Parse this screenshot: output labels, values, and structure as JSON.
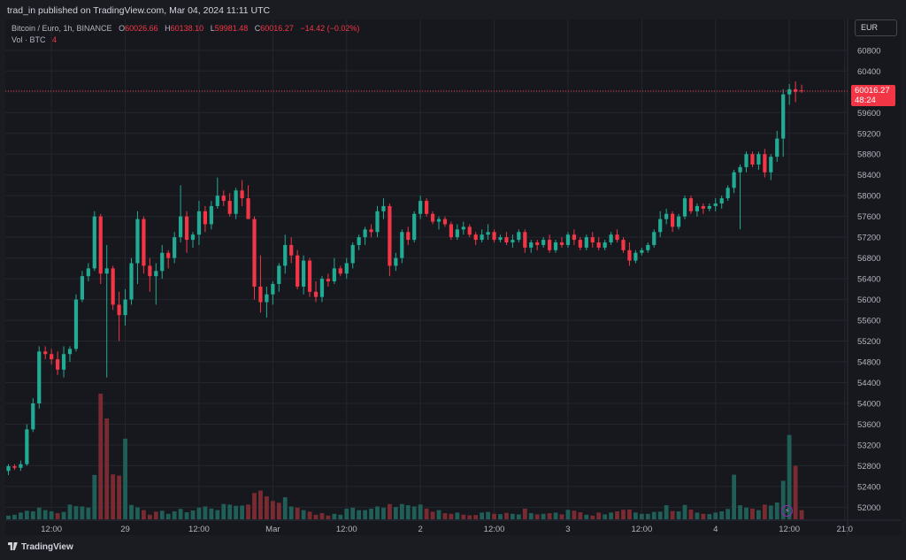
{
  "header": {
    "publisher": "trad_in published on TradingView.com, Mar 04, 2024 11:11 UTC"
  },
  "legend": {
    "symbol": "Bitcoin / Euro, 1h, BINANCE",
    "o_label": "O",
    "o_value": "60026.66",
    "h_label": "H",
    "h_value": "60138.10",
    "l_label": "L",
    "l_value": "59981.48",
    "c_label": "C",
    "c_value": "60016.27",
    "change": "−14.42 (−0.02%)",
    "vol_label": "Vol · BTC",
    "vol_value": "4"
  },
  "currency_button": {
    "label": "EUR"
  },
  "price_tag": {
    "price": "60016.27",
    "countdown": "48:24"
  },
  "footer": {
    "brand": "TradingView"
  },
  "icons": {
    "lightning": "lightning-icon"
  },
  "colors": {
    "up": "#22ab94",
    "down": "#f23645",
    "bg": "#17181e",
    "grid": "#24262e"
  },
  "chart_data": {
    "type": "candlestick",
    "title": "Bitcoin / Euro, 1h, BINANCE",
    "interval": "1h",
    "ylim": [
      51700,
      61000
    ],
    "y_ticks": [
      52000,
      52400,
      52800,
      53200,
      53600,
      54000,
      54400,
      54800,
      55200,
      55600,
      56000,
      56400,
      56800,
      57200,
      57600,
      58000,
      58400,
      58800,
      59200,
      59600,
      60000,
      60400,
      60800
    ],
    "x_ticks": [
      {
        "bar": 7,
        "label": "12:00"
      },
      {
        "bar": 19,
        "label": "29"
      },
      {
        "bar": 31,
        "label": "12:00"
      },
      {
        "bar": 43,
        "label": "Mar"
      },
      {
        "bar": 55,
        "label": "12:00"
      },
      {
        "bar": 67,
        "label": "2"
      },
      {
        "bar": 79,
        "label": "12:00"
      },
      {
        "bar": 91,
        "label": "3"
      },
      {
        "bar": 103,
        "label": "12:00"
      },
      {
        "bar": 115,
        "label": "4"
      },
      {
        "bar": 127,
        "label": "12:00"
      },
      {
        "bar": 136,
        "label": "21:0"
      }
    ],
    "last_price": 60016.27,
    "ohlc": [
      [
        52700,
        52830,
        52620,
        52790
      ],
      [
        52790,
        52830,
        52720,
        52760
      ],
      [
        52760,
        52900,
        52700,
        52830
      ],
      [
        52830,
        53600,
        52800,
        53500
      ],
      [
        53500,
        54100,
        53450,
        54000
      ],
      [
        54000,
        55100,
        53900,
        55000
      ],
      [
        55000,
        55100,
        54850,
        54950
      ],
      [
        54950,
        55050,
        54750,
        54850
      ],
      [
        54850,
        55000,
        54550,
        54650
      ],
      [
        54650,
        55100,
        54500,
        54950
      ],
      [
        54950,
        55100,
        54800,
        55050
      ],
      [
        55050,
        56100,
        55000,
        56000
      ],
      [
        56000,
        56550,
        55950,
        56450
      ],
      [
        56450,
        56700,
        56350,
        56600
      ],
      [
        56600,
        57700,
        56550,
        57600
      ],
      [
        57600,
        57650,
        56300,
        56500
      ],
      [
        56500,
        57050,
        54500,
        56600
      ],
      [
        56600,
        56650,
        55800,
        55900
      ],
      [
        55900,
        56150,
        55200,
        55700
      ],
      [
        55700,
        56200,
        55500,
        56000
      ],
      [
        56000,
        56800,
        55900,
        56700
      ],
      [
        56700,
        57700,
        56300,
        57550
      ],
      [
        57550,
        57600,
        56500,
        56650
      ],
      [
        56650,
        56800,
        56150,
        56450
      ],
      [
        56450,
        56700,
        55900,
        56550
      ],
      [
        56550,
        57050,
        56400,
        56900
      ],
      [
        56900,
        56950,
        56600,
        56800
      ],
      [
        56800,
        57300,
        56700,
        57200
      ],
      [
        57200,
        58200,
        57100,
        57600
      ],
      [
        57600,
        57700,
        56900,
        57150
      ],
      [
        57150,
        57300,
        57000,
        57250
      ],
      [
        57250,
        57900,
        57050,
        57700
      ],
      [
        57700,
        57800,
        57300,
        57450
      ],
      [
        57450,
        57900,
        57350,
        57800
      ],
      [
        57800,
        58350,
        57750,
        58000
      ],
      [
        58000,
        58100,
        57800,
        57900
      ],
      [
        57900,
        58050,
        57600,
        57650
      ],
      [
        57650,
        58150,
        57550,
        58100
      ],
      [
        58100,
        58300,
        57800,
        57950
      ],
      [
        57950,
        58200,
        57600,
        57550
      ],
      [
        57550,
        57600,
        56000,
        56250
      ],
      [
        56250,
        56850,
        55750,
        55950
      ],
      [
        55950,
        56250,
        55650,
        56100
      ],
      [
        56100,
        56350,
        55900,
        56300
      ],
      [
        56300,
        56700,
        56150,
        56650
      ],
      [
        56650,
        57250,
        56500,
        57050
      ],
      [
        57050,
        57200,
        56700,
        56850
      ],
      [
        56850,
        56950,
        56200,
        56250
      ],
      [
        56250,
        56850,
        56100,
        56750
      ],
      [
        56750,
        56800,
        56050,
        56150
      ],
      [
        56150,
        56350,
        55950,
        56050
      ],
      [
        56050,
        56450,
        55950,
        56400
      ],
      [
        56400,
        56500,
        56250,
        56350
      ],
      [
        56350,
        56800,
        56300,
        56600
      ],
      [
        56600,
        56650,
        56450,
        56500
      ],
      [
        56500,
        56800,
        56400,
        56700
      ],
      [
        56700,
        57100,
        56600,
        57050
      ],
      [
        57050,
        57250,
        56950,
        57200
      ],
      [
        57200,
        57400,
        57050,
        57350
      ],
      [
        57350,
        57450,
        57200,
        57300
      ],
      [
        57300,
        57800,
        57200,
        57700
      ],
      [
        57700,
        57950,
        57550,
        57800
      ],
      [
        57800,
        57850,
        56450,
        56650
      ],
      [
        56650,
        56900,
        56550,
        56800
      ],
      [
        56800,
        57350,
        56700,
        57300
      ],
      [
        57300,
        57400,
        57050,
        57150
      ],
      [
        57150,
        57700,
        57100,
        57650
      ],
      [
        57650,
        58000,
        57550,
        57900
      ],
      [
        57900,
        57950,
        57600,
        57650
      ],
      [
        57650,
        57700,
        57450,
        57500
      ],
      [
        57500,
        57600,
        57350,
        57550
      ],
      [
        57550,
        57600,
        57400,
        57450
      ],
      [
        57450,
        57500,
        57150,
        57200
      ],
      [
        57200,
        57450,
        57150,
        57350
      ],
      [
        57350,
        57500,
        57250,
        57400
      ],
      [
        57400,
        57450,
        57200,
        57250
      ],
      [
        57250,
        57300,
        57050,
        57150
      ],
      [
        57150,
        57350,
        57100,
        57250
      ],
      [
        57250,
        57450,
        57150,
        57300
      ],
      [
        57300,
        57350,
        57100,
        57150
      ],
      [
        57150,
        57250,
        57100,
        57200
      ],
      [
        57200,
        57300,
        57050,
        57100
      ],
      [
        57100,
        57250,
        57000,
        57150
      ],
      [
        57150,
        57350,
        57100,
        57300
      ],
      [
        57300,
        57350,
        56900,
        57000
      ],
      [
        57000,
        57150,
        56900,
        57100
      ],
      [
        57100,
        57150,
        56950,
        57050
      ],
      [
        57050,
        57200,
        57000,
        57150
      ],
      [
        57150,
        57250,
        56900,
        56950
      ],
      [
        56950,
        57150,
        56900,
        57100
      ],
      [
        57100,
        57200,
        57000,
        57050
      ],
      [
        57050,
        57300,
        57000,
        57250
      ],
      [
        57250,
        57350,
        57050,
        57150
      ],
      [
        57150,
        57200,
        56950,
        57000
      ],
      [
        57000,
        57250,
        56950,
        57200
      ],
      [
        57200,
        57300,
        57000,
        57100
      ],
      [
        57100,
        57200,
        56950,
        57000
      ],
      [
        57000,
        57150,
        56950,
        57100
      ],
      [
        57100,
        57300,
        57050,
        57250
      ],
      [
        57250,
        57350,
        57100,
        57150
      ],
      [
        57150,
        57200,
        56900,
        56950
      ],
      [
        56950,
        57100,
        56650,
        56750
      ],
      [
        56750,
        56950,
        56700,
        56900
      ],
      [
        56900,
        57000,
        56850,
        56950
      ],
      [
        56950,
        57100,
        56900,
        57050
      ],
      [
        57050,
        57350,
        57000,
        57300
      ],
      [
        57300,
        57700,
        57200,
        57550
      ],
      [
        57550,
        57750,
        57450,
        57650
      ],
      [
        57650,
        57700,
        57300,
        57400
      ],
      [
        57400,
        57650,
        57350,
        57600
      ],
      [
        57600,
        58000,
        57550,
        57950
      ],
      [
        57950,
        58000,
        57650,
        57700
      ],
      [
        57700,
        57850,
        57600,
        57800
      ],
      [
        57800,
        57850,
        57650,
        57750
      ],
      [
        57750,
        57850,
        57700,
        57800
      ],
      [
        57800,
        57950,
        57700,
        57850
      ],
      [
        57850,
        58000,
        57750,
        57950
      ],
      [
        57950,
        58200,
        57900,
        58150
      ],
      [
        58150,
        58500,
        58050,
        58450
      ],
      [
        58450,
        58600,
        57350,
        58550
      ],
      [
        58550,
        58850,
        58450,
        58800
      ],
      [
        58800,
        58850,
        58550,
        58600
      ],
      [
        58600,
        58850,
        58500,
        58800
      ],
      [
        58800,
        58900,
        58350,
        58450
      ],
      [
        58450,
        58800,
        58300,
        58750
      ],
      [
        58750,
        59250,
        58650,
        59100
      ],
      [
        59100,
        60050,
        58750,
        59950
      ],
      [
        59950,
        60150,
        59750,
        60050
      ],
      [
        60050,
        60200,
        59800,
        60000
      ],
      [
        60027,
        60138,
        59981,
        60016
      ]
    ],
    "volume": [
      [
        120,
        "up"
      ],
      [
        150,
        "up"
      ],
      [
        220,
        "up"
      ],
      [
        280,
        "up"
      ],
      [
        260,
        "up"
      ],
      [
        380,
        "up"
      ],
      [
        300,
        "up"
      ],
      [
        260,
        "up"
      ],
      [
        200,
        "down"
      ],
      [
        240,
        "up"
      ],
      [
        480,
        "up"
      ],
      [
        430,
        "up"
      ],
      [
        420,
        "up"
      ],
      [
        380,
        "up"
      ],
      [
        1450,
        "up"
      ],
      [
        4110,
        "down"
      ],
      [
        3300,
        "down"
      ],
      [
        1470,
        "down"
      ],
      [
        1430,
        "down"
      ],
      [
        2640,
        "up"
      ],
      [
        470,
        "up"
      ],
      [
        390,
        "up"
      ],
      [
        300,
        "down"
      ],
      [
        150,
        "down"
      ],
      [
        250,
        "down"
      ],
      [
        280,
        "up"
      ],
      [
        180,
        "up"
      ],
      [
        260,
        "up"
      ],
      [
        340,
        "up"
      ],
      [
        230,
        "up"
      ],
      [
        290,
        "up"
      ],
      [
        380,
        "up"
      ],
      [
        420,
        "up"
      ],
      [
        350,
        "up"
      ],
      [
        300,
        "up"
      ],
      [
        500,
        "up"
      ],
      [
        480,
        "up"
      ],
      [
        440,
        "up"
      ],
      [
        450,
        "up"
      ],
      [
        480,
        "down"
      ],
      [
        860,
        "down"
      ],
      [
        940,
        "down"
      ],
      [
        750,
        "down"
      ],
      [
        600,
        "down"
      ],
      [
        540,
        "down"
      ],
      [
        720,
        "up"
      ],
      [
        420,
        "up"
      ],
      [
        380,
        "down"
      ],
      [
        300,
        "up"
      ],
      [
        250,
        "down"
      ],
      [
        150,
        "down"
      ],
      [
        200,
        "down"
      ],
      [
        120,
        "down"
      ],
      [
        180,
        "up"
      ],
      [
        150,
        "up"
      ],
      [
        350,
        "up"
      ],
      [
        380,
        "up"
      ],
      [
        300,
        "up"
      ],
      [
        300,
        "up"
      ],
      [
        350,
        "up"
      ],
      [
        420,
        "up"
      ],
      [
        380,
        "up"
      ],
      [
        500,
        "down"
      ],
      [
        400,
        "up"
      ],
      [
        500,
        "up"
      ],
      [
        460,
        "up"
      ],
      [
        420,
        "up"
      ],
      [
        480,
        "up"
      ],
      [
        350,
        "down"
      ],
      [
        250,
        "down"
      ],
      [
        300,
        "up"
      ],
      [
        200,
        "down"
      ],
      [
        180,
        "down"
      ],
      [
        220,
        "up"
      ],
      [
        150,
        "down"
      ],
      [
        130,
        "down"
      ],
      [
        140,
        "down"
      ],
      [
        220,
        "up"
      ],
      [
        240,
        "up"
      ],
      [
        180,
        "down"
      ],
      [
        170,
        "up"
      ],
      [
        210,
        "down"
      ],
      [
        180,
        "up"
      ],
      [
        160,
        "up"
      ],
      [
        350,
        "down"
      ],
      [
        200,
        "up"
      ],
      [
        160,
        "down"
      ],
      [
        180,
        "up"
      ],
      [
        200,
        "down"
      ],
      [
        220,
        "up"
      ],
      [
        160,
        "down"
      ],
      [
        310,
        "up"
      ],
      [
        280,
        "down"
      ],
      [
        230,
        "down"
      ],
      [
        150,
        "up"
      ],
      [
        120,
        "down"
      ],
      [
        220,
        "down"
      ],
      [
        160,
        "up"
      ],
      [
        220,
        "up"
      ],
      [
        260,
        "down"
      ],
      [
        310,
        "down"
      ],
      [
        320,
        "down"
      ],
      [
        220,
        "up"
      ],
      [
        180,
        "up"
      ],
      [
        180,
        "up"
      ],
      [
        240,
        "up"
      ],
      [
        250,
        "up"
      ],
      [
        460,
        "up"
      ],
      [
        270,
        "down"
      ],
      [
        260,
        "up"
      ],
      [
        470,
        "up"
      ],
      [
        320,
        "down"
      ],
      [
        220,
        "up"
      ],
      [
        180,
        "down"
      ],
      [
        170,
        "up"
      ],
      [
        220,
        "up"
      ],
      [
        260,
        "up"
      ],
      [
        340,
        "up"
      ],
      [
        1460,
        "up"
      ],
      [
        460,
        "up"
      ],
      [
        380,
        "up"
      ],
      [
        350,
        "down"
      ],
      [
        300,
        "up"
      ],
      [
        480,
        "down"
      ],
      [
        450,
        "up"
      ],
      [
        550,
        "up"
      ],
      [
        1260,
        "up"
      ],
      [
        2760,
        "up"
      ],
      [
        1750,
        "down"
      ],
      [
        300,
        "down"
      ]
    ]
  }
}
